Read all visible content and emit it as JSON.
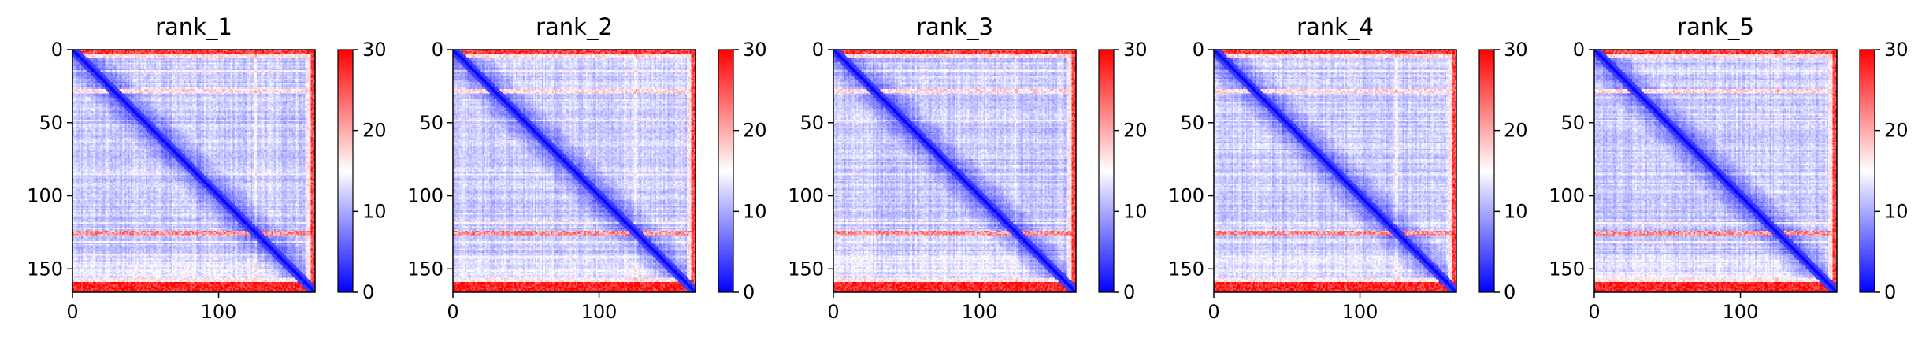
{
  "chart_data": [
    {
      "type": "heatmap",
      "title": "rank_1",
      "n": 166,
      "xlim": [
        0,
        166
      ],
      "ylim": [
        166,
        0
      ],
      "xticks": [
        0,
        100
      ],
      "yticks": [
        0,
        50,
        100,
        150
      ],
      "colorbar": {
        "range": [
          0,
          30
        ],
        "ticks": [
          0,
          10,
          20,
          30
        ],
        "colormap": "bwr",
        "colors": [
          "#0000ff",
          "#ffffff",
          "#ff0000"
        ]
      },
      "high_error_rows": [
        0,
        28,
        125,
        160
      ],
      "grid": false
    },
    {
      "type": "heatmap",
      "title": "rank_2",
      "n": 166,
      "xlim": [
        0,
        166
      ],
      "ylim": [
        166,
        0
      ],
      "xticks": [
        0,
        100
      ],
      "yticks": [
        0,
        50,
        100,
        150
      ],
      "colorbar": {
        "range": [
          0,
          30
        ],
        "ticks": [
          0,
          10,
          20,
          30
        ],
        "colormap": "bwr",
        "colors": [
          "#0000ff",
          "#ffffff",
          "#ff0000"
        ]
      },
      "high_error_rows": [
        0,
        28,
        125,
        160
      ],
      "grid": false
    },
    {
      "type": "heatmap",
      "title": "rank_3",
      "n": 166,
      "xlim": [
        0,
        166
      ],
      "ylim": [
        166,
        0
      ],
      "xticks": [
        0,
        100
      ],
      "yticks": [
        0,
        50,
        100,
        150
      ],
      "colorbar": {
        "range": [
          0,
          30
        ],
        "ticks": [
          0,
          10,
          20,
          30
        ],
        "colormap": "bwr",
        "colors": [
          "#0000ff",
          "#ffffff",
          "#ff0000"
        ]
      },
      "high_error_rows": [
        0,
        28,
        125,
        160
      ],
      "grid": false
    },
    {
      "type": "heatmap",
      "title": "rank_4",
      "n": 166,
      "xlim": [
        0,
        166
      ],
      "ylim": [
        166,
        0
      ],
      "xticks": [
        0,
        100
      ],
      "yticks": [
        0,
        50,
        100,
        150
      ],
      "colorbar": {
        "range": [
          0,
          30
        ],
        "ticks": [
          0,
          10,
          20,
          30
        ],
        "colormap": "bwr",
        "colors": [
          "#0000ff",
          "#ffffff",
          "#ff0000"
        ]
      },
      "high_error_rows": [
        0,
        28,
        125,
        160
      ],
      "grid": false
    },
    {
      "type": "heatmap",
      "title": "rank_5",
      "n": 166,
      "xlim": [
        0,
        166
      ],
      "ylim": [
        166,
        0
      ],
      "xticks": [
        0,
        100
      ],
      "yticks": [
        0,
        50,
        100,
        150
      ],
      "colorbar": {
        "range": [
          0,
          30
        ],
        "ticks": [
          0,
          10,
          20,
          30
        ],
        "colormap": "bwr",
        "colors": [
          "#0000ff",
          "#ffffff",
          "#ff0000"
        ]
      },
      "high_error_rows": [
        0,
        28,
        125,
        160
      ],
      "grid": false
    }
  ]
}
